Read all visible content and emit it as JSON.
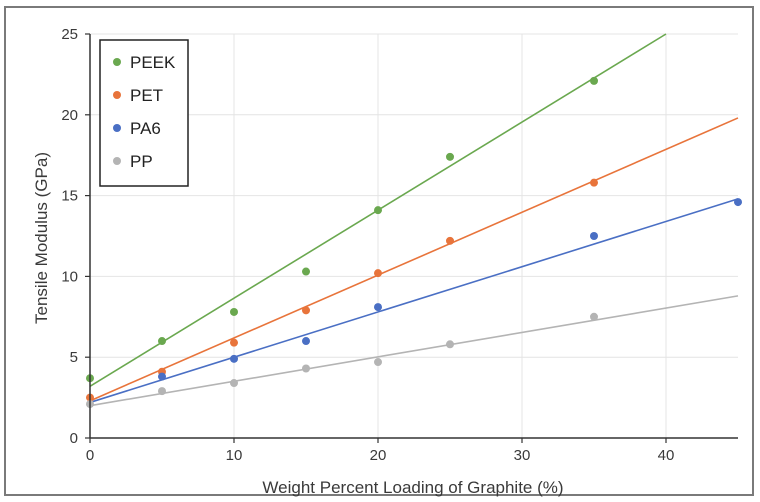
{
  "chart_data": {
    "type": "scatter",
    "xlabel": "Weight Percent Loading of Graphite (%)",
    "ylabel": "Tensile Modulus (GPa)",
    "xlim": [
      0,
      45
    ],
    "ylim": [
      0,
      25
    ],
    "xticks": [
      0,
      10,
      20,
      30,
      40
    ],
    "yticks": [
      0,
      5,
      10,
      15,
      20,
      25
    ],
    "grid": "horizontal and vertical, light",
    "legend_position": "top-left",
    "series": [
      {
        "name": "PEEK",
        "color": "#6aa84f",
        "points": [
          [
            0,
            3.7
          ],
          [
            5,
            6.0
          ],
          [
            10,
            7.8
          ],
          [
            15,
            10.3
          ],
          [
            20,
            14.1
          ],
          [
            25,
            17.4
          ],
          [
            35,
            22.1
          ]
        ],
        "fit": {
          "intercept": 3.2,
          "slope": 0.545
        }
      },
      {
        "name": "PET",
        "color": "#e8743b",
        "points": [
          [
            0,
            2.5
          ],
          [
            5,
            4.1
          ],
          [
            10,
            5.9
          ],
          [
            15,
            7.9
          ],
          [
            20,
            10.2
          ],
          [
            25,
            12.2
          ],
          [
            35,
            15.8
          ]
        ],
        "fit": {
          "intercept": 2.3,
          "slope": 0.389
        }
      },
      {
        "name": "PA6",
        "color": "#4a6fc4",
        "points": [
          [
            5,
            3.8
          ],
          [
            10,
            4.9
          ],
          [
            15,
            6.0
          ],
          [
            20,
            8.1
          ],
          [
            35,
            12.5
          ],
          [
            45,
            14.6
          ]
        ],
        "fit": {
          "intercept": 2.2,
          "slope": 0.28
        }
      },
      {
        "name": "PP",
        "color": "#b4b4b4",
        "points": [
          [
            0,
            2.1
          ],
          [
            5,
            2.9
          ],
          [
            10,
            3.4
          ],
          [
            15,
            4.3
          ],
          [
            20,
            4.7
          ],
          [
            25,
            5.8
          ],
          [
            35,
            7.5
          ]
        ],
        "fit": {
          "intercept": 2.0,
          "slope": 0.151
        }
      }
    ]
  }
}
